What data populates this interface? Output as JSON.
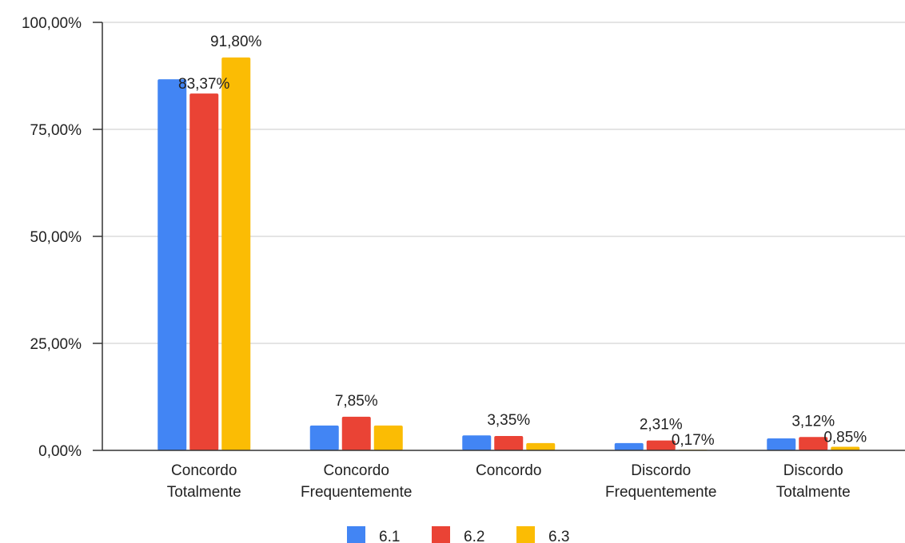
{
  "chart_data": {
    "type": "bar",
    "title": "",
    "xlabel": "",
    "ylabel": "",
    "ylim": [
      0,
      100
    ],
    "yticks": [
      {
        "value": 0,
        "label": "0,00%"
      },
      {
        "value": 25,
        "label": "25,00%"
      },
      {
        "value": 50,
        "label": "50,00%"
      },
      {
        "value": 75,
        "label": "75,00%"
      },
      {
        "value": 100,
        "label": "100,00%"
      }
    ],
    "grid": true,
    "legend_position": "bottom",
    "categories": [
      [
        "Concordo",
        "Totalmente"
      ],
      [
        "Concordo",
        "Frequentemente"
      ],
      [
        "Concordo"
      ],
      [
        "Discordo",
        "Frequentemente"
      ],
      [
        "Discordo",
        "Totalmente"
      ]
    ],
    "series": [
      {
        "name": "6.1",
        "color": "#4285F4",
        "values": [
          86.7,
          5.8,
          3.5,
          1.7,
          2.8
        ]
      },
      {
        "name": "6.2",
        "color": "#EA4335",
        "values": [
          83.37,
          7.85,
          3.35,
          2.31,
          3.12
        ]
      },
      {
        "name": "6.3",
        "color": "#FBBC04",
        "values": [
          91.8,
          5.8,
          1.7,
          0.17,
          0.85
        ]
      }
    ],
    "data_labels": [
      {
        "category": 0,
        "series": 1,
        "text": "83,37%",
        "color": "#f2f2f2",
        "size": 9
      },
      {
        "category": 0,
        "series": 2,
        "text": "91,80%",
        "color": "#222222",
        "size": 19
      },
      {
        "category": 1,
        "series": 1,
        "text": "7,85%",
        "color": "#eeeeee",
        "size": 19
      },
      {
        "category": 2,
        "series": 1,
        "text": "3,35%",
        "color": "#eeeeee",
        "size": 19
      },
      {
        "category": 3,
        "series": 1,
        "text": "2,31%",
        "color": "#222222",
        "size": 19
      },
      {
        "category": 3,
        "series": 2,
        "text": "0,17%",
        "color": "#eeeeee",
        "size": 9
      },
      {
        "category": 4,
        "series": 1,
        "text": "3,12%",
        "color": "#222222",
        "size": 19
      },
      {
        "category": 4,
        "series": 2,
        "text": "0,85%",
        "color": "#eeeeee",
        "size": 9
      }
    ]
  }
}
